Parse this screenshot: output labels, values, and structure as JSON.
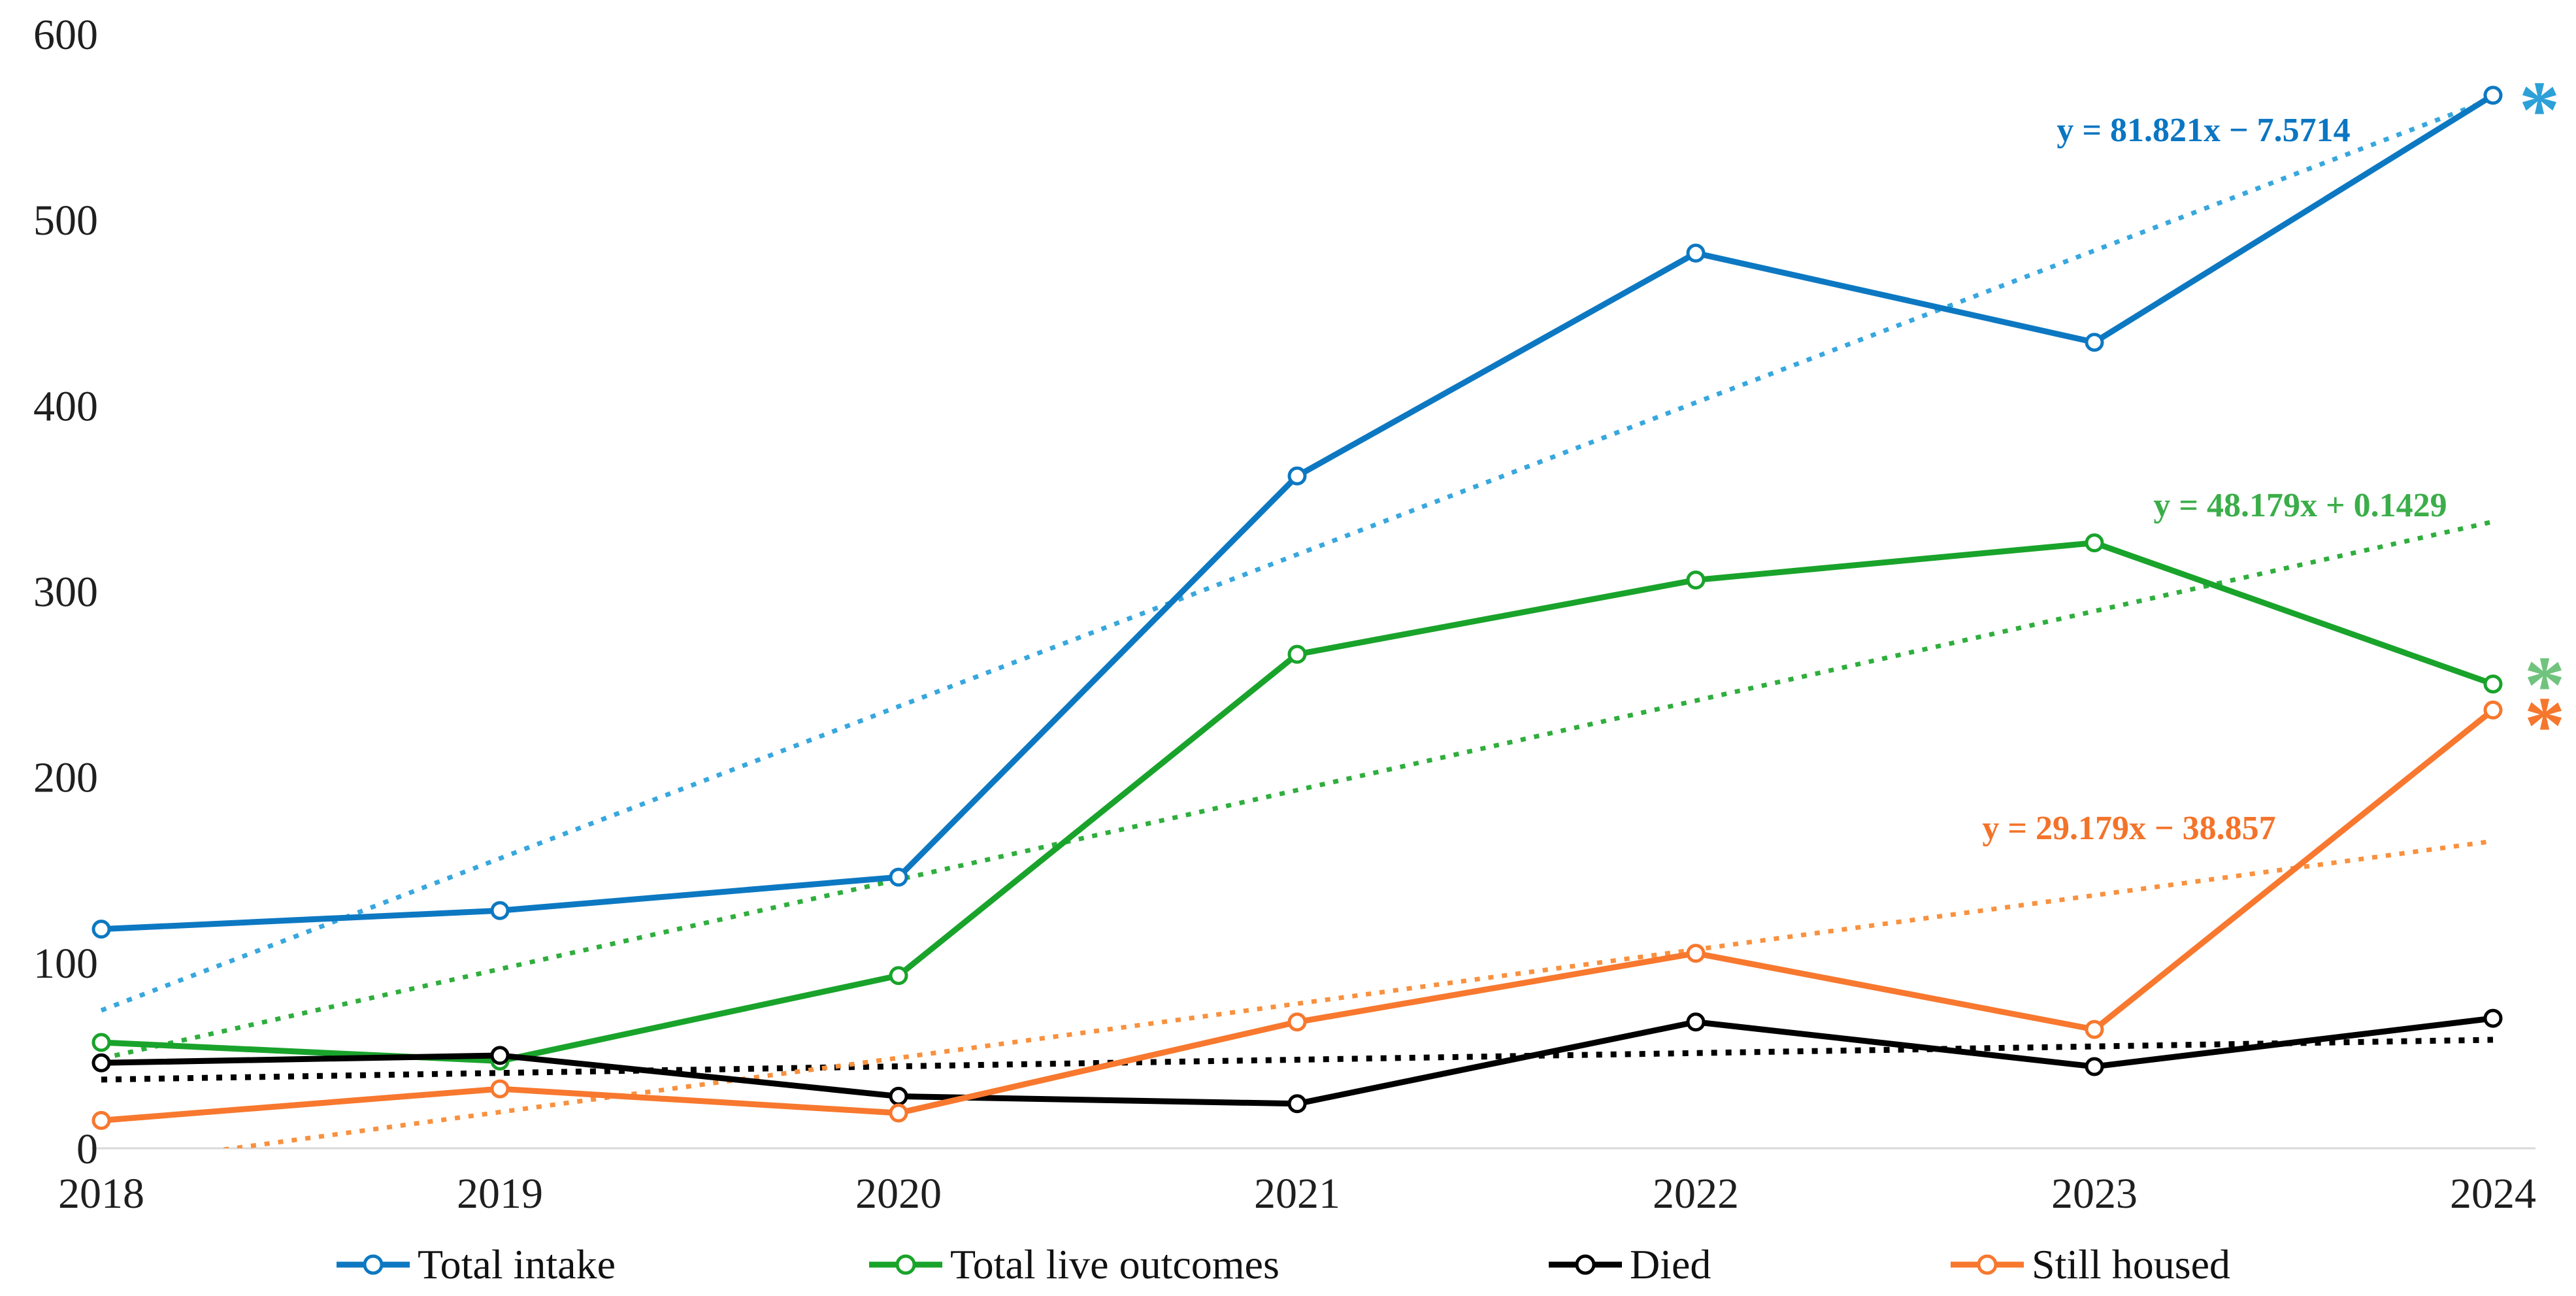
{
  "chart_data": {
    "type": "line",
    "title": "",
    "xlabel": "",
    "ylabel": "",
    "x_categories": [
      "2018",
      "2019",
      "2020",
      "2021",
      "2022",
      "2023",
      "2024"
    ],
    "ylim": [
      0,
      600
    ],
    "yticks": [
      0,
      100,
      200,
      300,
      400,
      500,
      600
    ],
    "grid": false,
    "legend_position": "bottom",
    "axis_line_color": "#d9d9d9",
    "series": [
      {
        "name": "Total intake",
        "color": "#0d78c2",
        "marker": "open-circle",
        "values": [
          118,
          128,
          146,
          362,
          482,
          434,
          567
        ],
        "trendline": {
          "equation": "y = 81.821x − 7.5714",
          "slope": 81.821,
          "intercept": -7.5714,
          "color": "#38a7de",
          "equation_color": "#0b76c2"
        },
        "significance": {
          "symbol": "*",
          "color": "#2da0d8"
        }
      },
      {
        "name": "Total live outcomes",
        "color": "#19a32b",
        "marker": "open-circle",
        "values": [
          57,
          47,
          93,
          266,
          306,
          326,
          250
        ],
        "trendline": {
          "equation": "y = 48.179x + 0.1429",
          "slope": 48.179,
          "intercept": 0.1429,
          "color": "#2fae3d",
          "equation_color": "#3bae49"
        },
        "significance": {
          "symbol": "*",
          "color": "#70c37d"
        }
      },
      {
        "name": "Died",
        "color": "#000000",
        "marker": "open-circle",
        "values": [
          46,
          50,
          28,
          24,
          68,
          44,
          70
        ],
        "trendline": {
          "equation": "",
          "slope": 3.571,
          "intercept": 33.43,
          "color": "#000000",
          "equation_color": "#000000"
        },
        "significance": null
      },
      {
        "name": "Still housed",
        "color": "#f7782e",
        "marker": "open-circle",
        "values": [
          15,
          32,
          19,
          68,
          105,
          64,
          236
        ],
        "trendline": {
          "equation": "y = 29.179x − 38.857",
          "slope": 29.179,
          "intercept": -38.857,
          "color": "#f8913f",
          "equation_color": "#f3732a"
        },
        "significance": {
          "symbol": "*",
          "color": "#f5772e"
        }
      }
    ]
  }
}
